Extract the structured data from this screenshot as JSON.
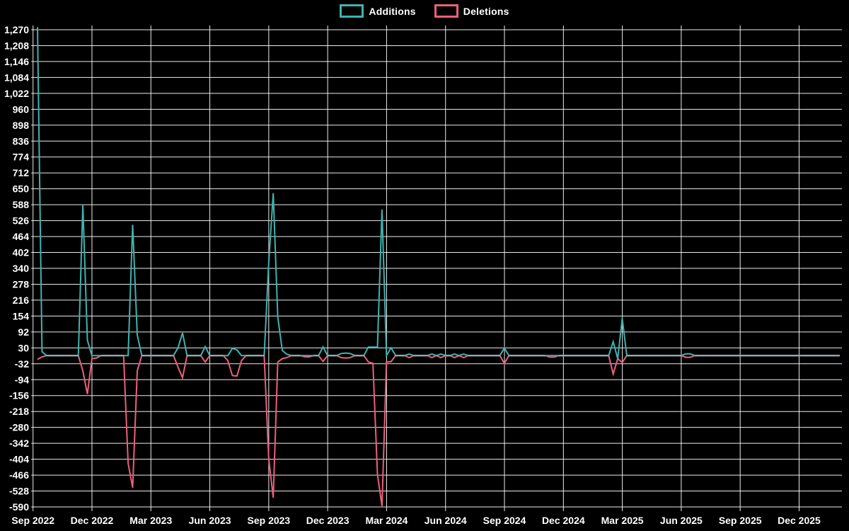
{
  "legend": {
    "additions_label": "Additions",
    "deletions_label": "Deletions"
  },
  "colors": {
    "background": "#000000",
    "grid": "#ffffff",
    "text": "#ffffff",
    "additions": "#3fb3b0",
    "deletions": "#ed5f7d",
    "baseline_overlap": "#9aafb9"
  },
  "chart_data": {
    "type": "line",
    "title": "",
    "xlabel": "",
    "ylabel": "",
    "grid": true,
    "legend_position": "top-center",
    "ylim": [
      -590,
      1270
    ],
    "y_tick_step": 62,
    "y_tick_labels": [
      "1,270",
      "1,208",
      "1,146",
      "1,084",
      "1,022",
      "960",
      "898",
      "836",
      "774",
      "712",
      "650",
      "588",
      "526",
      "464",
      "402",
      "340",
      "278",
      "216",
      "154",
      "92",
      "30",
      "-32",
      "-94",
      "-156",
      "-218",
      "-280",
      "-342",
      "-404",
      "-466",
      "-528",
      "-590"
    ],
    "x_tick_labels": [
      "Sep 2022",
      "Dec 2022",
      "Mar 2023",
      "Jun 2023",
      "Sep 2023",
      "Dec 2023",
      "Mar 2024",
      "Jun 2024",
      "Sep 2024",
      "Dec 2024",
      "Mar 2025",
      "Jun 2025",
      "Sep 2025",
      "Dec 2025"
    ],
    "x_unit": "week_index",
    "weeks_per_x_tick": 13,
    "weeks": 178,
    "series": [
      {
        "name": "Additions",
        "color": "#3fb3b0",
        "baseline": 0,
        "points": {
          "0": 1280,
          "1": 15,
          "10": 588,
          "11": 60,
          "21": 510,
          "22": 80,
          "31": 30,
          "32": 88,
          "37": 35,
          "43": 28,
          "44": 22,
          "51": 360,
          "52": 633,
          "53": 150,
          "54": 20,
          "55": 5,
          "63": 34,
          "67": 8,
          "68": 10,
          "69": 8,
          "73": 33,
          "74": 33,
          "75": 33,
          "76": 569,
          "78": 30,
          "82": 6,
          "87": 6,
          "89": 6,
          "92": 6,
          "94": 6,
          "103": 29,
          "127": 54,
          "128": -12,
          "129": 145,
          "143": 7,
          "144": 7
        }
      },
      {
        "name": "Deletions",
        "color": "#ed5f7d",
        "baseline": 0,
        "points": {
          "0": -15,
          "1": -5,
          "10": -60,
          "11": -150,
          "12": -12,
          "13": -10,
          "20": -420,
          "21": -515,
          "22": -60,
          "31": -45,
          "32": -86,
          "37": -25,
          "42": -20,
          "43": -78,
          "44": -80,
          "45": -20,
          "51": -400,
          "52": -554,
          "53": -25,
          "54": -12,
          "55": -8,
          "59": -5,
          "60": -5,
          "63": -23,
          "67": -8,
          "68": -10,
          "69": -8,
          "73": -25,
          "74": -30,
          "75": -463,
          "76": -587,
          "77": -25,
          "78": -24,
          "82": -8,
          "87": -8,
          "89": -8,
          "92": -8,
          "94": -8,
          "103": -31,
          "113": -6,
          "114": -6,
          "127": -72,
          "128": -12,
          "129": -27,
          "143": -7,
          "144": -7
        }
      }
    ]
  }
}
